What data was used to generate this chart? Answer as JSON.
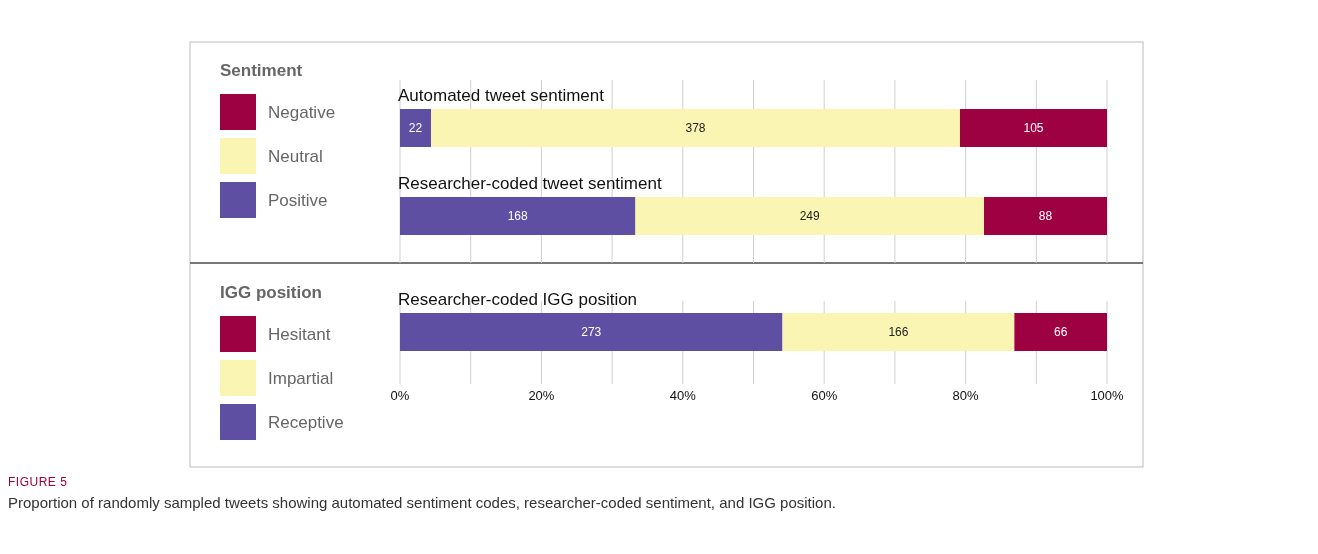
{
  "chart_data": [
    {
      "type": "bar",
      "orientation": "horizontal",
      "stacked": true,
      "legend_title": "Sentiment",
      "legend": "left",
      "grid": "x",
      "tick_labels": "y",
      "categories": [
        "Automated tweet sentiment",
        "Researcher-coded tweet sentiment"
      ],
      "xlim": [
        0,
        100
      ],
      "xticks": [
        0,
        10,
        20,
        30,
        40,
        50,
        60,
        70,
        80,
        90,
        100
      ],
      "series": [
        {
          "name": "Positive",
          "color": "#5e4fa2",
          "values": [
            4.4,
            33.3
          ]
        },
        {
          "name": "Neutral",
          "color": "#fbf5b3",
          "values": [
            74.8,
            49.3
          ]
        },
        {
          "name": "Negative",
          "color": "#9e0142",
          "values": [
            20.8,
            17.4
          ]
        }
      ],
      "annotations": [
        "22",
        "378",
        "105",
        "168",
        "249",
        "88"
      ]
    },
    {
      "type": "bar",
      "orientation": "horizontal",
      "stacked": true,
      "legend_title": "IGG position",
      "legend": "left",
      "grid": "x",
      "categories": [
        "Researcher-coded IGG position"
      ],
      "xlim": [
        0,
        100
      ],
      "xticks": [
        {
          "value": 0,
          "label": "0%"
        },
        {
          "value": 10,
          "label": null
        },
        {
          "value": 20,
          "label": "20%"
        },
        {
          "value": 30,
          "label": null
        },
        {
          "value": 40,
          "label": "40%"
        },
        {
          "value": 50,
          "label": null
        },
        {
          "value": 60,
          "label": "60%"
        },
        {
          "value": 70,
          "label": null
        },
        {
          "value": 80,
          "label": "80%"
        },
        {
          "value": 90,
          "label": null
        },
        {
          "value": 100,
          "label": "100%"
        }
      ],
      "series": [
        {
          "name": "Receptive",
          "color": "#5e4fa2",
          "values": [
            54.1
          ]
        },
        {
          "name": "Impartial",
          "color": "#fbf5b3",
          "values": [
            32.8
          ]
        },
        {
          "name": "Hesitant",
          "color": "#9e0142",
          "values": [
            13.1
          ]
        }
      ],
      "annotations": [
        "273",
        "166",
        "66",
        "FIGURE 5",
        "Proportion of randomly sampled tweets showing automated sentiment codes, researcher-coded sentiment, and IGG position."
      ]
    }
  ]
}
